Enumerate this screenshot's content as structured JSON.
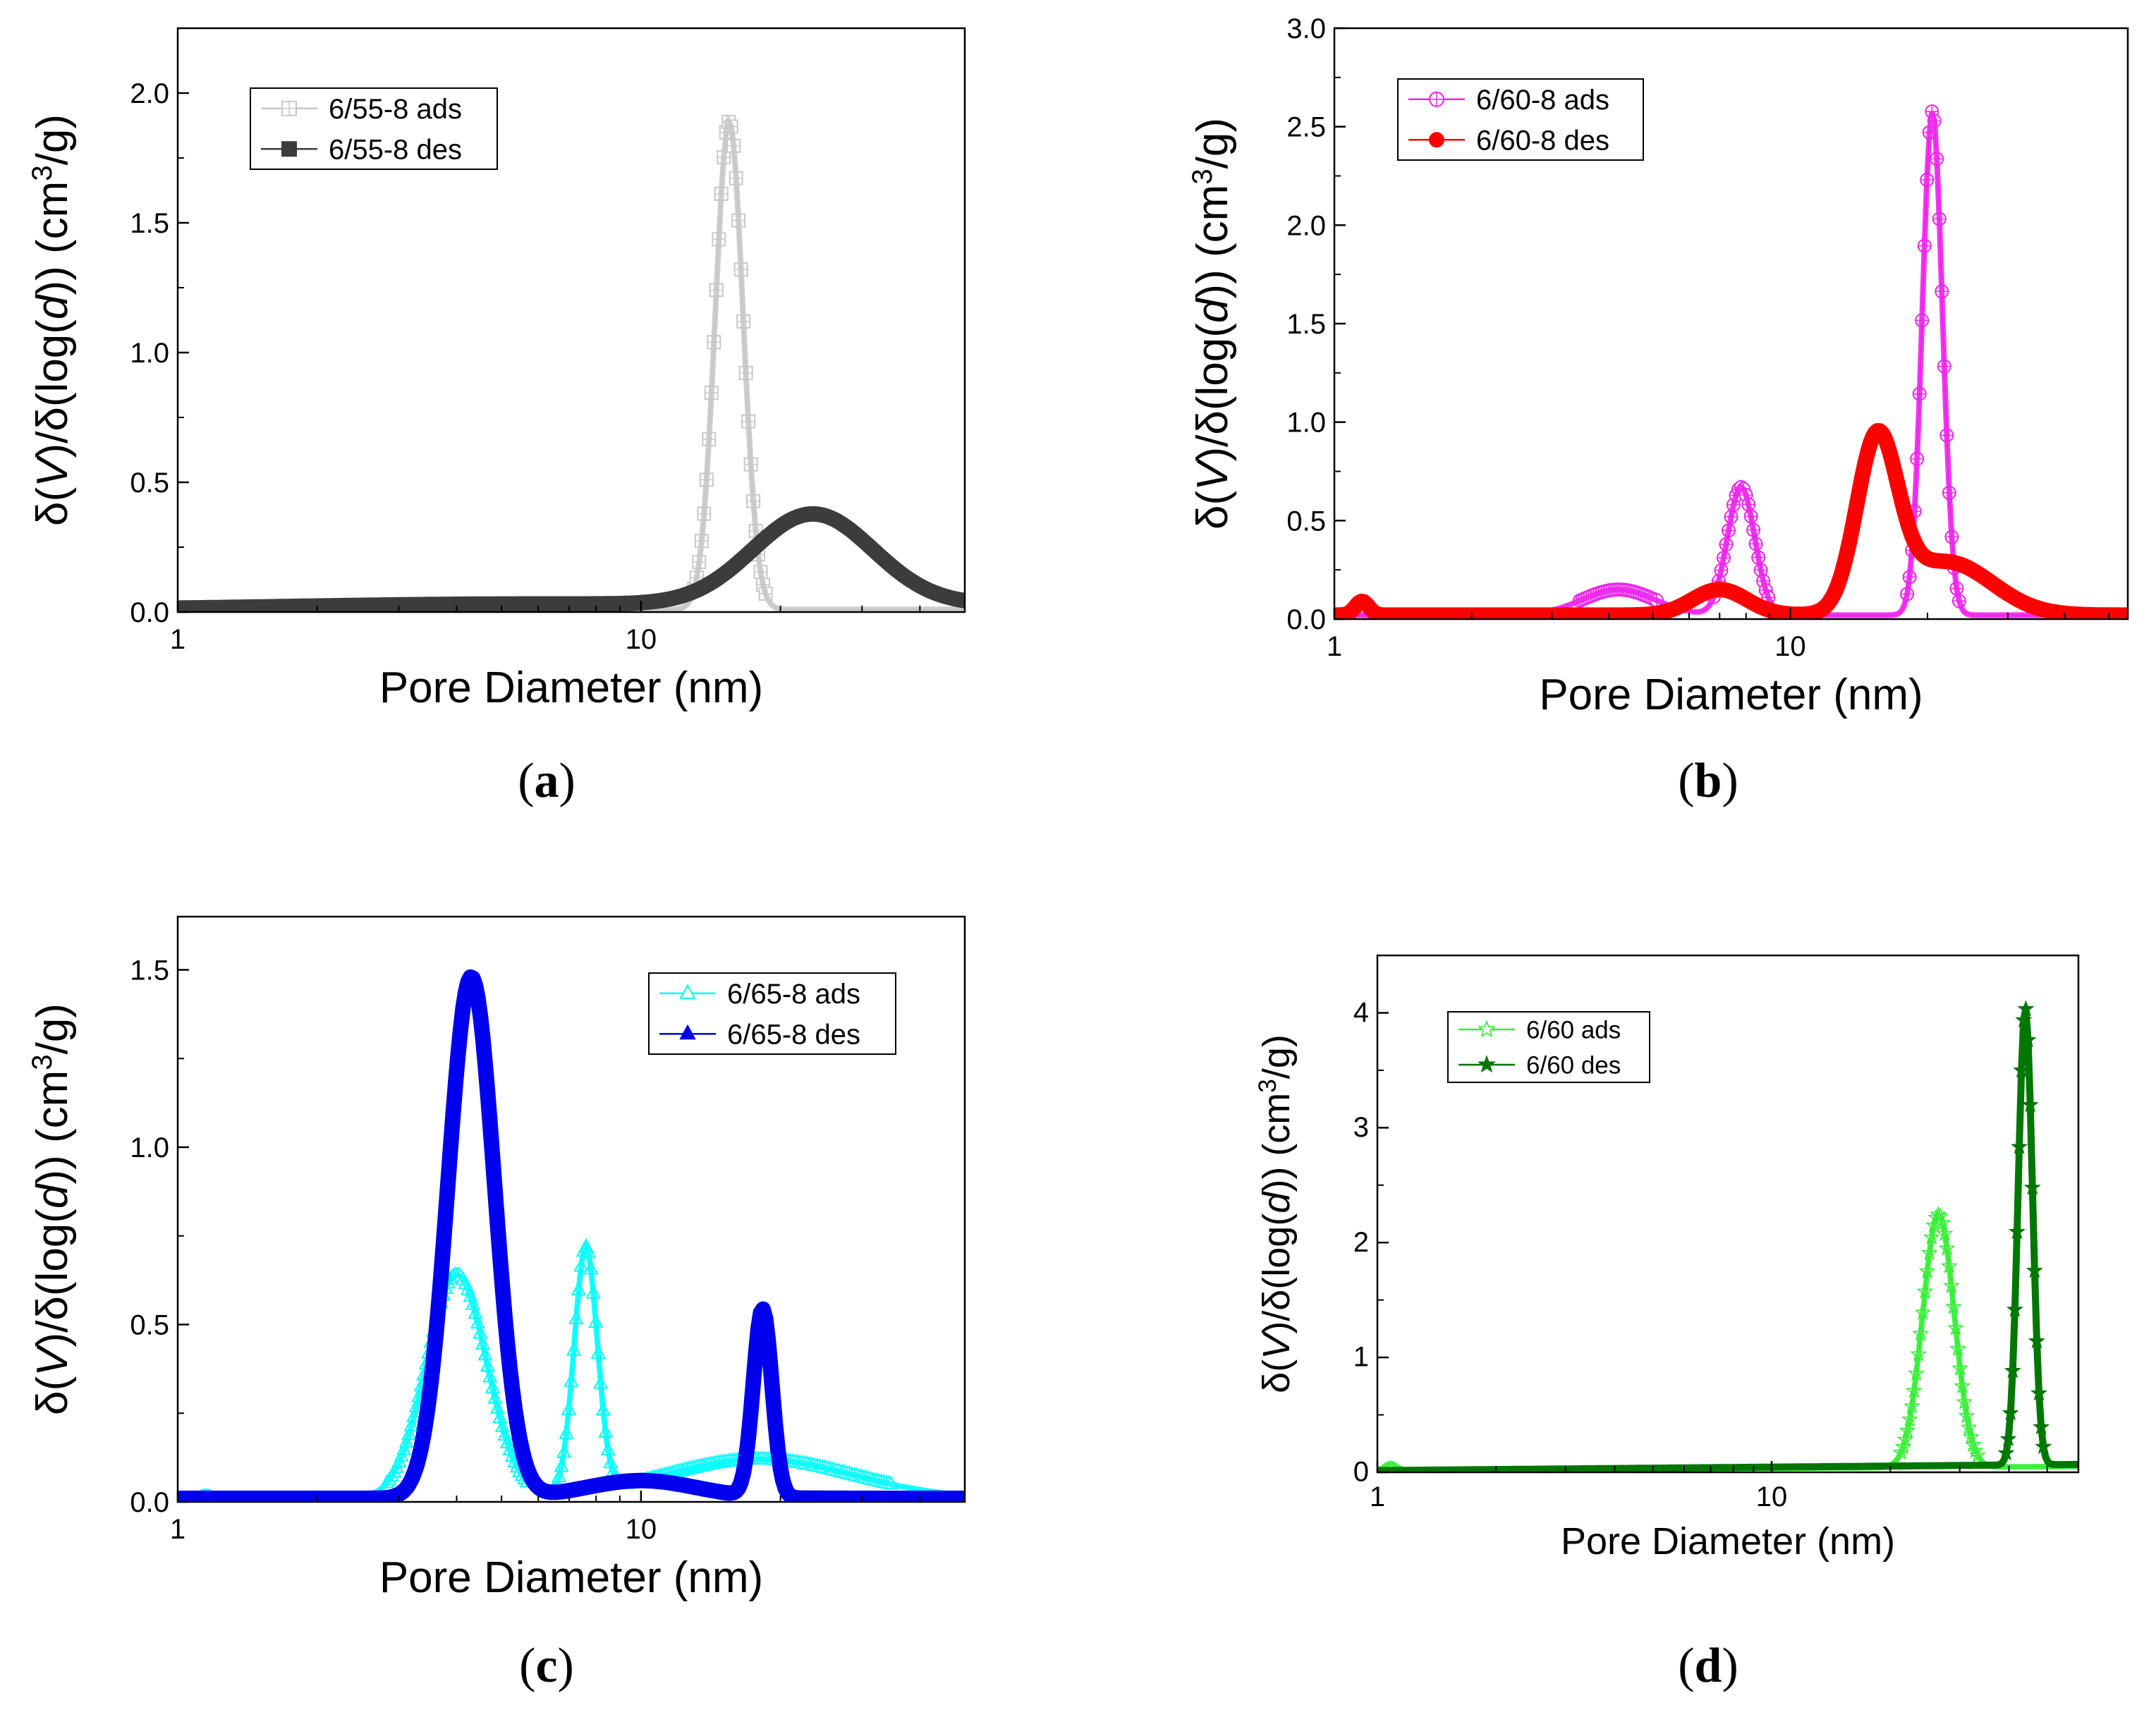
{
  "figure": {
    "colors": {
      "axis": "#000000",
      "background": "#ffffff"
    }
  },
  "chart_data": [
    {
      "type": "line",
      "panel_label": "(a)",
      "xlabel": "Pore Diameter (nm)",
      "ylabel_parts": [
        "δ(",
        "V",
        ")/δ(log(",
        "d",
        ")) (cm",
        "3",
        "/g)"
      ],
      "xscale": "log",
      "xlim": [
        1,
        50
      ],
      "ylim": [
        0,
        2.25
      ],
      "xticks": [
        1,
        10
      ],
      "xtick_labels": [
        "1",
        "10"
      ],
      "yticks": [
        0,
        0.5,
        1.0,
        1.5,
        2.0
      ],
      "ytick_labels": [
        "0.0",
        "0.5",
        "1.0",
        "1.5",
        "2.0"
      ],
      "legend": {
        "placement": "top-left"
      },
      "series": [
        {
          "name": "6/55-8 ads",
          "color": "#c8c8c8",
          "marker": "square-plus",
          "style": "hollow",
          "base": 0.01,
          "baseline_slope": 0,
          "peaks": [
            {
              "center": 15.5,
              "height": 1.88,
              "width": 0.03
            }
          ]
        },
        {
          "name": "6/55-8 des",
          "color": "#3c3c3c",
          "marker": "square",
          "style": "thick",
          "base": 0.012,
          "baseline_slope": 0.01,
          "peaks": [
            {
              "center": 4.5,
              "height": 0.012,
              "width": 0.4
            },
            {
              "center": 23.5,
              "height": 0.35,
              "width": 0.13
            }
          ]
        }
      ]
    },
    {
      "type": "line",
      "panel_label": "(b)",
      "xlabel": "Pore Diameter (nm)",
      "ylabel_parts": [
        "δ(",
        "V",
        ")/δ(log(",
        "d",
        ")) (cm",
        "3",
        "/g)"
      ],
      "xscale": "log",
      "xlim": [
        1,
        55
      ],
      "ylim": [
        0,
        3.0
      ],
      "xticks": [
        1,
        10
      ],
      "xtick_labels": [
        "1",
        "10"
      ],
      "yticks": [
        0,
        0.5,
        1.0,
        1.5,
        2.0,
        2.5,
        3.0
      ],
      "ytick_labels": [
        "0.0",
        "0.5",
        "1.0",
        "1.5",
        "2.0",
        "2.5",
        "3.0"
      ],
      "legend": {
        "placement": "top-left"
      },
      "series": [
        {
          "name": "6/60-8 ads",
          "color": "#ee22ee",
          "marker": "circle-plus",
          "style": "hollow",
          "base": 0.02,
          "baseline_slope": 0,
          "peaks": [
            {
              "center": 4.2,
              "height": 0.13,
              "width": 0.08
            },
            {
              "center": 7.8,
              "height": 0.65,
              "width": 0.03
            },
            {
              "center": 20.5,
              "height": 2.56,
              "width": 0.022
            }
          ]
        },
        {
          "name": "6/60-8 des",
          "color": "#ff0000",
          "marker": "circle",
          "style": "thick",
          "base": 0.02,
          "baseline_slope": 0,
          "peaks": [
            {
              "center": 1.15,
              "height": 0.07,
              "width": 0.015
            },
            {
              "center": 7.0,
              "height": 0.13,
              "width": 0.06
            },
            {
              "center": 15.5,
              "height": 0.85,
              "width": 0.045
            },
            {
              "center": 22.0,
              "height": 0.27,
              "width": 0.1
            }
          ]
        }
      ]
    },
    {
      "type": "line",
      "panel_label": "(c)",
      "xlabel": "Pore Diameter (nm)",
      "ylabel_parts": [
        "δ(",
        "V",
        ")/δ(log(",
        "d",
        ")) (cm",
        "3",
        "/g)"
      ],
      "xscale": "log",
      "xlim": [
        1,
        50
      ],
      "ylim": [
        0,
        1.65
      ],
      "xticks": [
        1,
        10
      ],
      "xtick_labels": [
        "1",
        "10"
      ],
      "yticks": [
        0,
        0.5,
        1.0,
        1.5
      ],
      "ytick_labels": [
        "0.0",
        "0.5",
        "1.0",
        "1.5"
      ],
      "legend": {
        "placement": "top-right"
      },
      "series": [
        {
          "name": "6/65-8 ads",
          "color": "#00ffff",
          "marker": "triangle",
          "style": "hollow",
          "base": 0.01,
          "baseline_slope": 0,
          "peaks": [
            {
              "center": 1.15,
              "height": 0.02,
              "width": 0.015
            },
            {
              "center": 4.0,
              "height": 0.63,
              "width": 0.065
            },
            {
              "center": 7.6,
              "height": 0.69,
              "width": 0.025
            },
            {
              "center": 18.0,
              "height": 0.11,
              "width": 0.2
            }
          ]
        },
        {
          "name": "6/65-8 des",
          "color": "#0000ee",
          "marker": "triangle",
          "style": "thick",
          "base": 0.01,
          "baseline_slope": 0,
          "peaks": [
            {
              "center": 4.3,
              "height": 1.47,
              "width": 0.05
            },
            {
              "center": 10.0,
              "height": 0.05,
              "width": 0.12
            },
            {
              "center": 18.3,
              "height": 0.53,
              "width": 0.02
            }
          ]
        }
      ]
    },
    {
      "type": "line",
      "panel_label": "(d)",
      "xlabel": "Pore Diameter (nm)",
      "ylabel_parts": [
        "δ(",
        "V",
        ")/δ(log(",
        "d",
        ")) (cm",
        "3",
        "/g)"
      ],
      "xscale": "log",
      "xlim": [
        1,
        60
      ],
      "ylim": [
        0,
        4.5
      ],
      "xticks": [
        1,
        10
      ],
      "xtick_labels": [
        "1",
        "10"
      ],
      "yticks": [
        0,
        1,
        2,
        3,
        4
      ],
      "ytick_labels": [
        "0",
        "1",
        "2",
        "3",
        "4"
      ],
      "legend": {
        "placement": "top-left"
      },
      "series": [
        {
          "name": "6/60 ads",
          "color": "#33ee33",
          "marker": "star",
          "style": "hollow",
          "base": 0.015,
          "baseline_slope": 0.02,
          "peaks": [
            {
              "center": 1.08,
              "height": 0.06,
              "width": 0.015
            },
            {
              "center": 26.5,
              "height": 2.2,
              "width": 0.04
            }
          ]
        },
        {
          "name": "6/60 des",
          "color": "#007700",
          "marker": "star",
          "style": "filled",
          "base": 0.015,
          "baseline_slope": 0.03,
          "peaks": [
            {
              "center": 44.0,
              "height": 3.98,
              "width": 0.018
            }
          ]
        }
      ]
    }
  ]
}
